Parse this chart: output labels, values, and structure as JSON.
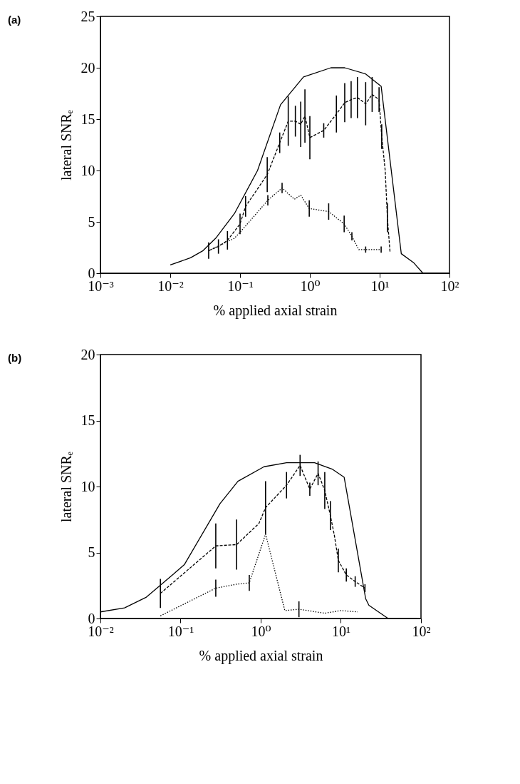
{
  "chart_data": [
    {
      "type": "line",
      "annotations": [
        "(a)"
      ],
      "xlabel": "% applied axial strain",
      "ylabel": "lateral SNRₑ",
      "log": "x",
      "xlim": [
        0.001,
        100
      ],
      "xticks": [
        {
          "value": 0.001,
          "label": "10⁻³"
        },
        {
          "value": 0.01,
          "label": "10⁻²"
        },
        {
          "value": 0.1,
          "label": "10⁻¹"
        },
        {
          "value": 1,
          "label": "10⁰"
        },
        {
          "value": 10,
          "label": "10¹"
        },
        {
          "value": 100,
          "label": "10²"
        }
      ],
      "ylim": [
        0,
        25
      ],
      "yticks": [
        0,
        5,
        10,
        15,
        20,
        25
      ],
      "grid": false,
      "marker": "none",
      "series": [
        {
          "color": "#000000",
          "line_style": "solid",
          "x": [
            0.01,
            0.0195,
            0.0295,
            0.0447,
            0.083,
            0.178,
            0.38,
            0.81,
            2.0,
            3.16,
            6.3,
            10.5,
            20.4,
            30.9,
            41.7,
            100
          ],
          "values": [
            0.8,
            1.5,
            2.2,
            3.4,
            5.8,
            10.0,
            16.4,
            19.1,
            20.0,
            20.0,
            19.4,
            18.2,
            1.9,
            1.0,
            0,
            0
          ]
        },
        {
          "color": "#000000",
          "line_style": "dashed",
          "x": [
            0.0355,
            0.049,
            0.066,
            0.1,
            0.12,
            0.245,
            0.37,
            0.49,
            0.62,
            0.74,
            0.85,
            1.0,
            1.58,
            2.4,
            3.16,
            3.9,
            4.8,
            6.3,
            7.8,
            9.8,
            10.7,
            12.0,
            12.9,
            14.1
          ],
          "values": [
            2.2,
            2.6,
            3.2,
            4.8,
            6.5,
            9.6,
            12.7,
            14.8,
            14.8,
            14.5,
            15.3,
            13.2,
            13.9,
            15.5,
            16.6,
            16.9,
            17.1,
            16.5,
            17.4,
            16.9,
            13.3,
            10.0,
            5.4,
            2.0
          ],
          "errors": [
            0.8,
            0.7,
            0.9,
            1.0,
            1.0,
            1.7,
            1.0,
            2.4,
            1.5,
            2.2,
            2.6,
            2.1,
            0.7,
            1.8,
            1.9,
            1.8,
            2.0,
            2.1,
            1.7,
            1.2,
            1.2,
            null,
            1.4,
            null
          ]
        },
        {
          "color": "#000000",
          "line_style": "dotted",
          "x": [
            0.0355,
            0.083,
            0.12,
            0.25,
            0.4,
            0.6,
            0.74,
            0.98,
            1.86,
            3.1,
            4.0,
            5.0,
            6.3,
            8.1,
            10.5
          ],
          "values": [
            2.2,
            3.4,
            4.6,
            7.1,
            8.3,
            7.2,
            7.6,
            6.3,
            6.0,
            4.8,
            3.6,
            2.3,
            2.3,
            2.3,
            2.3
          ],
          "errors": [
            null,
            null,
            null,
            0.5,
            0.5,
            null,
            null,
            0.8,
            0.8,
            0.8,
            0.4,
            null,
            0.3,
            null,
            0.3
          ]
        }
      ]
    },
    {
      "type": "line",
      "annotations": [
        "(b)"
      ],
      "xlabel": "% applied axial strain",
      "ylabel": "lateral SNRₑ",
      "log": "x",
      "xlim": [
        0.01,
        100
      ],
      "xticks": [
        {
          "value": 0.01,
          "label": "10⁻²"
        },
        {
          "value": 0.1,
          "label": "10⁻¹"
        },
        {
          "value": 1,
          "label": "10⁰"
        },
        {
          "value": 10,
          "label": "10¹"
        },
        {
          "value": 100,
          "label": "10²"
        }
      ],
      "ylim": [
        0,
        20
      ],
      "yticks": [
        0,
        5,
        10,
        15,
        20
      ],
      "grid": false,
      "marker": "none",
      "series": [
        {
          "color": "#000000",
          "line_style": "solid",
          "x": [
            0.01,
            0.02,
            0.037,
            0.083,
            0.112,
            0.31,
            0.52,
            1.1,
            2.1,
            4.7,
            7.9,
            11.0,
            20.4,
            22.4,
            38.9,
            89
          ],
          "values": [
            0.5,
            0.8,
            1.6,
            3.4,
            4.1,
            8.7,
            10.4,
            11.5,
            11.8,
            11.8,
            11.3,
            10.7,
            1.5,
            1.0,
            0,
            0
          ]
        },
        {
          "color": "#000000",
          "line_style": "dashed",
          "x": [
            0.056,
            0.275,
            0.5,
            0.95,
            1.15,
            2.1,
            3.1,
            4.1,
            5.2,
            6.3,
            7.4,
            8.3,
            9.3,
            11.7,
            15.1,
            20
          ],
          "values": [
            1.9,
            5.5,
            5.6,
            7.2,
            8.4,
            10.1,
            11.6,
            9.8,
            11.0,
            9.7,
            7.8,
            6.3,
            4.4,
            3.3,
            2.8,
            2.3
          ],
          "errors": [
            1.1,
            1.7,
            1.9,
            null,
            2.0,
            1.0,
            0.8,
            0.5,
            0.9,
            1.4,
            1.1,
            null,
            0.9,
            0.5,
            0.4,
            0.3
          ]
        },
        {
          "color": "#000000",
          "line_style": "dotted",
          "x": [
            0.056,
            0.275,
            0.5,
            0.72,
            1.15,
            2.0,
            3.0,
            6.3,
            10,
            16.2
          ],
          "values": [
            0.2,
            2.3,
            2.6,
            2.7,
            6.4,
            0.6,
            0.7,
            0.4,
            0.6,
            0.5
          ],
          "errors": [
            null,
            0.65,
            null,
            0.6,
            null,
            null,
            0.6,
            null,
            null,
            null
          ]
        }
      ]
    }
  ]
}
